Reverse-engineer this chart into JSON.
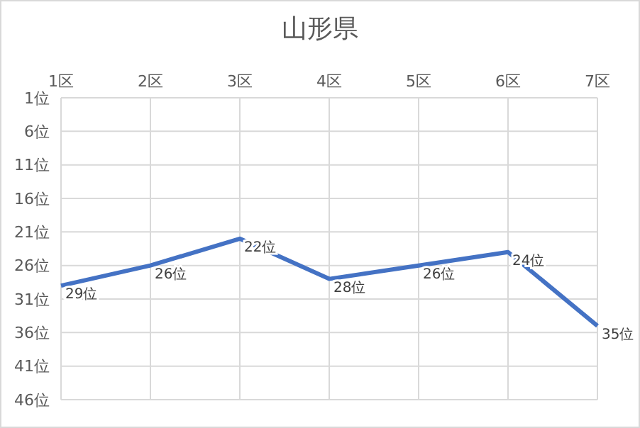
{
  "chart_data": {
    "type": "line",
    "title": "山形県",
    "categories": [
      "1区",
      "2区",
      "3区",
      "4区",
      "5区",
      "6区",
      "7区"
    ],
    "series": [
      {
        "color": "#4472c4",
        "values": [
          29,
          26,
          22,
          28,
          26,
          24,
          35
        ],
        "value_labels": [
          "29位",
          "26位",
          "22位",
          "28位",
          "26位",
          "24位",
          "35位"
        ]
      }
    ],
    "ylim": [
      46,
      1
    ],
    "yticks": [
      {
        "value": 1,
        "label": "1位"
      },
      {
        "value": 6,
        "label": "6位"
      },
      {
        "value": 11,
        "label": "11位"
      },
      {
        "value": 16,
        "label": "16位"
      },
      {
        "value": 21,
        "label": "21位"
      },
      {
        "value": 26,
        "label": "26位"
      },
      {
        "value": 31,
        "label": "31位"
      },
      {
        "value": 36,
        "label": "36位"
      },
      {
        "value": 41,
        "label": "41位"
      },
      {
        "value": 46,
        "label": "46位"
      }
    ],
    "grid": true,
    "legend": false,
    "marker": "none",
    "line_style": "solid"
  }
}
